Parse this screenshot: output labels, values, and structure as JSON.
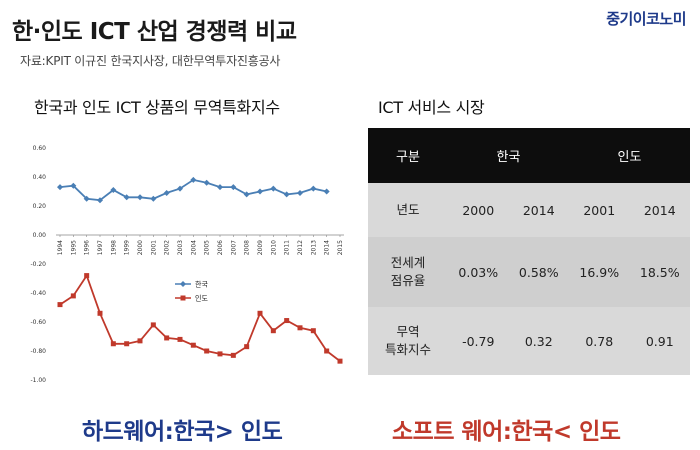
{
  "header": {
    "title": "한·인도 ICT 산업 경쟁력 비교",
    "brand": "중기이코노미",
    "source": "자료:KPIT 이규진 한국지사장, 대한무역투자진흥공사"
  },
  "chart_section": {
    "title": "한국과 인도 ICT 상품의 무역특화지수"
  },
  "table_section": {
    "title": "ICT 서비스 시장"
  },
  "chart_data": {
    "type": "line",
    "title": "한국과 인도 ICT 상품의 무역특화지수",
    "x": [
      "1994",
      "1995",
      "1996",
      "1997",
      "1998",
      "1999",
      "2000",
      "2001",
      "2002",
      "2003",
      "2004",
      "2005",
      "2006",
      "2007",
      "2008",
      "2009",
      "2010",
      "2011",
      "2012",
      "2013",
      "2014",
      "2015"
    ],
    "ylim": [
      -1.0,
      0.6
    ],
    "yticks": [
      "0.60",
      "0.40",
      "0.20",
      "0.00",
      "-0.20",
      "-0.40",
      "-0.60",
      "-0.80",
      "-1.00"
    ],
    "grid": false,
    "legend": "center",
    "series": [
      {
        "name": "한국",
        "color": "#4a7fb5",
        "values": [
          0.33,
          0.34,
          0.25,
          0.24,
          0.31,
          0.26,
          0.26,
          0.25,
          0.29,
          0.32,
          0.38,
          0.36,
          0.33,
          0.33,
          0.28,
          0.3,
          0.32,
          0.28,
          0.29,
          0.32,
          0.3,
          null
        ]
      },
      {
        "name": "인도",
        "color": "#c0392b",
        "values": [
          -0.48,
          -0.42,
          -0.28,
          -0.54,
          -0.75,
          -0.75,
          -0.73,
          -0.62,
          -0.71,
          -0.72,
          -0.76,
          -0.8,
          -0.82,
          -0.83,
          -0.77,
          -0.54,
          -0.66,
          -0.59,
          -0.64,
          -0.66,
          -0.8,
          -0.87
        ]
      }
    ]
  },
  "table": {
    "header": [
      "구분",
      "한국",
      "인도"
    ],
    "rows": [
      {
        "label": [
          "년도"
        ],
        "cells": [
          "2000",
          "2014",
          "2001",
          "2014"
        ]
      },
      {
        "label": [
          "전세계",
          "점유율"
        ],
        "cells": [
          "0.03%",
          "0.58%",
          "16.9%",
          "18.5%"
        ]
      },
      {
        "label": [
          "무역",
          "특화지수"
        ],
        "cells": [
          "-0.79",
          "0.32",
          "0.78",
          "0.91"
        ]
      }
    ]
  },
  "footer": {
    "left": "하드웨어:한국> 인도",
    "right": "소프트 웨어:한국< 인도"
  }
}
